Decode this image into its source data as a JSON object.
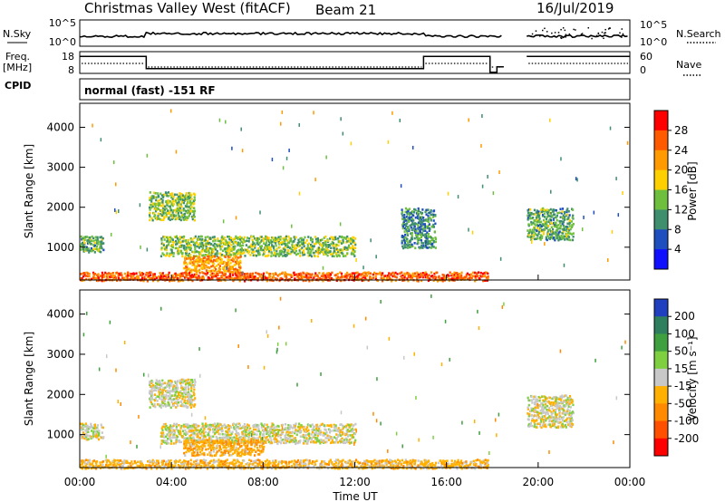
{
  "header": {
    "title": "Christmas Valley West (fitACF)",
    "beam": "Beam 21",
    "date": "16/Jul/2019"
  },
  "sky_panel": {
    "label": "N.Sky",
    "left_ticks": [
      "10^5",
      "10^0"
    ],
    "right_label": "N.Search",
    "right_ticks": [
      "10^5",
      "10^0"
    ]
  },
  "freq_panel": {
    "label_line1": "Freq.",
    "label_line2": "[MHz]",
    "left_ticks": [
      "18",
      "8"
    ],
    "right_label": "Nave",
    "right_ticks": [
      "60",
      "0"
    ]
  },
  "cpid": {
    "label": "CPID",
    "value": "normal (fast) -151 RF"
  },
  "x_axis": {
    "label": "Time UT",
    "ticks": [
      "00:00",
      "04:00",
      "08:00",
      "12:00",
      "16:00",
      "20:00",
      "00:00"
    ]
  },
  "power_panel": {
    "ylabel": "Slant Range [km]",
    "yticks": [
      "4000",
      "3000",
      "2000",
      "1000"
    ],
    "colorbar_label": "Power [dB]",
    "colorbar_ticks": [
      "28",
      "24",
      "20",
      "16",
      "12",
      "8",
      "4"
    ],
    "colors": [
      "#ff0000",
      "#ff5a00",
      "#ff9a00",
      "#ffd000",
      "#6fbf3f",
      "#3f8f6f",
      "#1f4fbf",
      "#1010ff"
    ]
  },
  "velocity_panel": {
    "ylabel": "Slant Range [km]",
    "yticks": [
      "4000",
      "3000",
      "2000",
      "1000"
    ],
    "colorbar_label": "Velocity [m s⁻¹]",
    "colorbar_ticks": [
      "200",
      "100",
      "50",
      "15",
      "-15",
      "-50",
      "-100",
      "-200"
    ],
    "colors": [
      "#2040c0",
      "#2f7f5f",
      "#3fa03f",
      "#7fd040",
      "#c8c8c8",
      "#ffb000",
      "#ff8a00",
      "#ff5000",
      "#ff0000"
    ]
  },
  "chart_data": {
    "type": "heatmap",
    "title": "Christmas Valley West (fitACF)",
    "xlabel": "Time UT",
    "ylabel": "Slant Range [km]",
    "xlim": [
      "00:00",
      "24:00"
    ],
    "ylim": [
      180,
      4600
    ],
    "frequency_mhz": [
      {
        "start_h": 0.0,
        "end_h": 2.9,
        "value": 15.8
      },
      {
        "start_h": 2.9,
        "end_h": 15.0,
        "value": 10.2
      },
      {
        "start_h": 15.0,
        "end_h": 17.9,
        "value": 15.8
      },
      {
        "start_h": 17.9,
        "end_h": 18.2,
        "value": 8.5
      },
      {
        "start_h": 18.2,
        "end_h": 18.5,
        "value": 11.0
      },
      {
        "start_h": 19.5,
        "end_h": 24.0,
        "value": 15.8
      }
    ],
    "data_gap_h": [
      [
        18.5,
        19.5
      ]
    ],
    "power_regions_db": [
      {
        "t_start_h": 0.0,
        "t_end_h": 1.0,
        "range_km": [
          900,
          1300
        ],
        "value": 12
      },
      {
        "t_start_h": 3.5,
        "t_end_h": 12.0,
        "range_km": [
          800,
          1300
        ],
        "value": 14
      },
      {
        "t_start_h": 4.5,
        "t_end_h": 7.0,
        "range_km": [
          400,
          800
        ],
        "value": 22
      },
      {
        "t_start_h": 0.0,
        "t_end_h": 17.8,
        "range_km": [
          180,
          400
        ],
        "value": 26
      },
      {
        "t_start_h": 3.0,
        "t_end_h": 5.0,
        "range_km": [
          1700,
          2400
        ],
        "value": 14
      },
      {
        "t_start_h": 14.0,
        "t_end_h": 15.5,
        "range_km": [
          1000,
          2000
        ],
        "value": 10
      },
      {
        "t_start_h": 19.5,
        "t_end_h": 21.5,
        "range_km": [
          1200,
          2000
        ],
        "value": 12
      }
    ],
    "velocity_regions_ms": [
      {
        "t_start_h": 0.0,
        "t_end_h": 1.0,
        "range_km": [
          900,
          1300
        ],
        "value": 0
      },
      {
        "t_start_h": 3.5,
        "t_end_h": 12.0,
        "range_km": [
          800,
          1300
        ],
        "value": 0
      },
      {
        "t_start_h": 4.5,
        "t_end_h": 8.0,
        "range_km": [
          500,
          900
        ],
        "value": -40
      },
      {
        "t_start_h": 0.0,
        "t_end_h": 17.8,
        "range_km": [
          180,
          400
        ],
        "value": -30
      },
      {
        "t_start_h": 3.0,
        "t_end_h": 5.0,
        "range_km": [
          1700,
          2400
        ],
        "value": 0
      },
      {
        "t_start_h": 19.5,
        "t_end_h": 21.5,
        "range_km": [
          1200,
          2000
        ],
        "value": 0
      }
    ]
  }
}
